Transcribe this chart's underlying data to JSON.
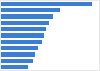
{
  "values": [
    750,
    490,
    430,
    400,
    375,
    355,
    335,
    305,
    280,
    265,
    220
  ],
  "bar_color": "#3a7fd5",
  "background_color": "#e8e8e8",
  "plot_background": "#ffffff",
  "grid_color": "#bbbbbb",
  "n_bars": 11
}
